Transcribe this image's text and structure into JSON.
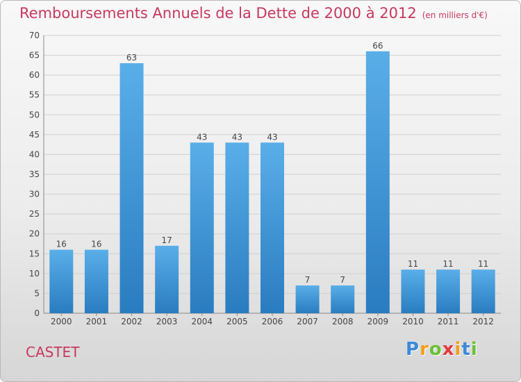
{
  "title": "Remboursements Annuels de la Dette de 2000 à 2012",
  "unit": "(en milliers d'€)",
  "commune": "CASTET",
  "logo": {
    "letters": [
      "P",
      "r",
      "o",
      "x",
      "i",
      "t",
      "i"
    ],
    "colors": [
      "#3b8ad8",
      "#f39c1e",
      "#6cbf3a",
      "#e53a3a",
      "#f39c1e",
      "#3b8ad8",
      "#6cbf3a"
    ]
  },
  "colors": {
    "bar_light": "#5aaee8",
    "bar_dark": "#2a7cc0",
    "grid": "#cfcfcf",
    "text": "#444444",
    "accent": "#c8385e"
  },
  "chart_data": {
    "type": "bar",
    "title": "Remboursements Annuels de la Dette de 2000 à 2012",
    "categories": [
      "2000",
      "2001",
      "2002",
      "2003",
      "2004",
      "2005",
      "2006",
      "2007",
      "2008",
      "2009",
      "2010",
      "2011",
      "2012"
    ],
    "values": [
      16,
      16,
      63,
      17,
      43,
      43,
      43,
      7,
      7,
      66,
      11,
      11,
      11
    ],
    "xlabel": "",
    "ylabel": "",
    "ylim": [
      0,
      70
    ],
    "yticks": [
      0,
      5,
      10,
      15,
      20,
      25,
      30,
      35,
      40,
      45,
      50,
      55,
      60,
      65,
      70
    ],
    "grid": true,
    "legend": "none"
  }
}
